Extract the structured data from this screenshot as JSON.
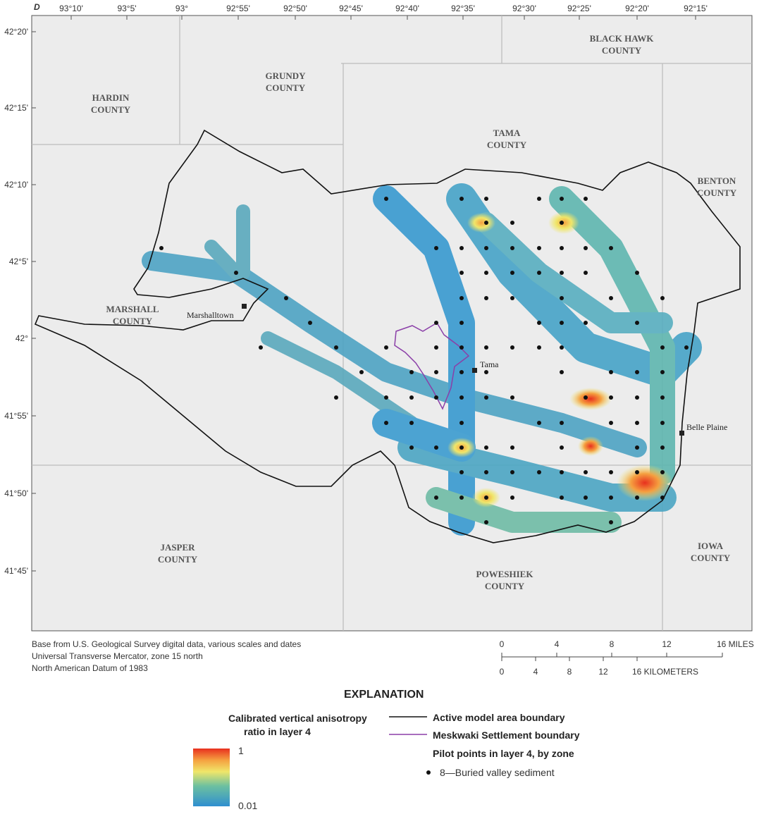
{
  "panel_label": "D",
  "longitude_labels": [
    "93°10'",
    "93°5'",
    "93°",
    "92°55'",
    "92°50'",
    "92°45'",
    "92°40'",
    "92°35'",
    "92°30'",
    "92°25'",
    "92°20'",
    "92°15'"
  ],
  "latitude_labels": [
    "42°20'",
    "42°15'",
    "42°10'",
    "42°5'",
    "42°",
    "41°55'",
    "41°50'",
    "41°45'"
  ],
  "counties": [
    [
      "HARDIN",
      "COUNTY"
    ],
    [
      "GRUNDY",
      "COUNTY"
    ],
    [
      "TAMA",
      "COUNTY"
    ],
    [
      "BLACK HAWK",
      "COUNTY"
    ],
    [
      "BENTON",
      "COUNTY"
    ],
    [
      "MARSHALL",
      "COUNTY"
    ],
    [
      "JASPER",
      "COUNTY"
    ],
    [
      "POWESHIEK",
      "COUNTY"
    ],
    [
      "IOWA",
      "COUNTY"
    ]
  ],
  "places": [
    "Marshalltown",
    "Tama",
    "Belle Plaine"
  ],
  "base_note": [
    "Base from U.S. Geological Survey digital data, various scales and dates",
    "Universal Transverse Mercator, zone 15 north",
    "North American Datum of 1983"
  ],
  "scale": {
    "miles_ticks": [
      0,
      4,
      8,
      12
    ],
    "miles_label": "16 MILES",
    "km_ticks": [
      0,
      4,
      8,
      12
    ],
    "km_label": "16 KILOMETERS"
  },
  "explanation": {
    "title": "EXPLANATION",
    "colorbar_title": [
      "Calibrated vertical anisotropy",
      "ratio in layer 4"
    ],
    "colorbar_max": "1",
    "colorbar_min": "0.01",
    "items": [
      "Active model area boundary",
      "Meskwaki Settlement boundary",
      "Pilot points in layer 4, by zone",
      "8—Buried valley sediment"
    ]
  }
}
